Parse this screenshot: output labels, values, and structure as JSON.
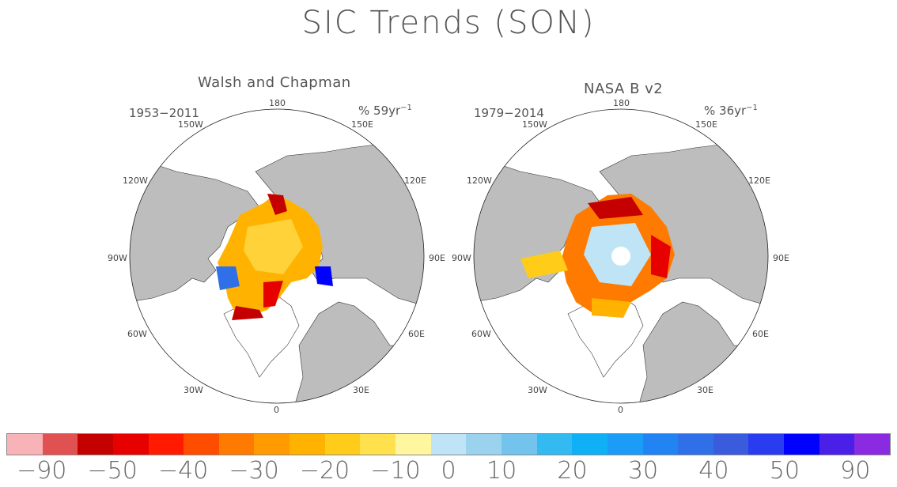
{
  "title": "SIC Trends (SON)",
  "panels": [
    {
      "name": "Walsh and Chapman",
      "period": "1953−2011",
      "unit_text": "% 59yr",
      "unit_exp": "−1",
      "lon_labels": [
        "180",
        "150W",
        "150E",
        "120W",
        "120E",
        "90W",
        "90E",
        "60W",
        "60E",
        "30W",
        "30E",
        "0"
      ]
    },
    {
      "name": "NASA B v2",
      "period": "1979−2014",
      "unit_text": "% 36yr",
      "unit_exp": "−1",
      "lon_labels": [
        "180",
        "150W",
        "150E",
        "120W",
        "120E",
        "90W",
        "90E",
        "60W",
        "60E",
        "30W",
        "30E",
        "0"
      ]
    }
  ],
  "colorbar": {
    "colors": [
      "#f7b3b7",
      "#e05252",
      "#c40000",
      "#e60000",
      "#ff1a00",
      "#ff4d00",
      "#ff7a00",
      "#ff9a00",
      "#ffb300",
      "#ffcc1a",
      "#ffe04d",
      "#fff7a0",
      "#bfe4f5",
      "#9bd3ee",
      "#74c3ec",
      "#33baf0",
      "#0fb0f5",
      "#1a9cf7",
      "#2284f3",
      "#2f6fe8",
      "#3a5bdc",
      "#2a3cf0",
      "#0000ff",
      "#4a1fe8",
      "#8a2be2"
    ],
    "labels": [
      "−90",
      "−50",
      "−40",
      "−30",
      "−20",
      "−10",
      "0",
      "10",
      "20",
      "30",
      "40",
      "50",
      "90"
    ]
  }
}
